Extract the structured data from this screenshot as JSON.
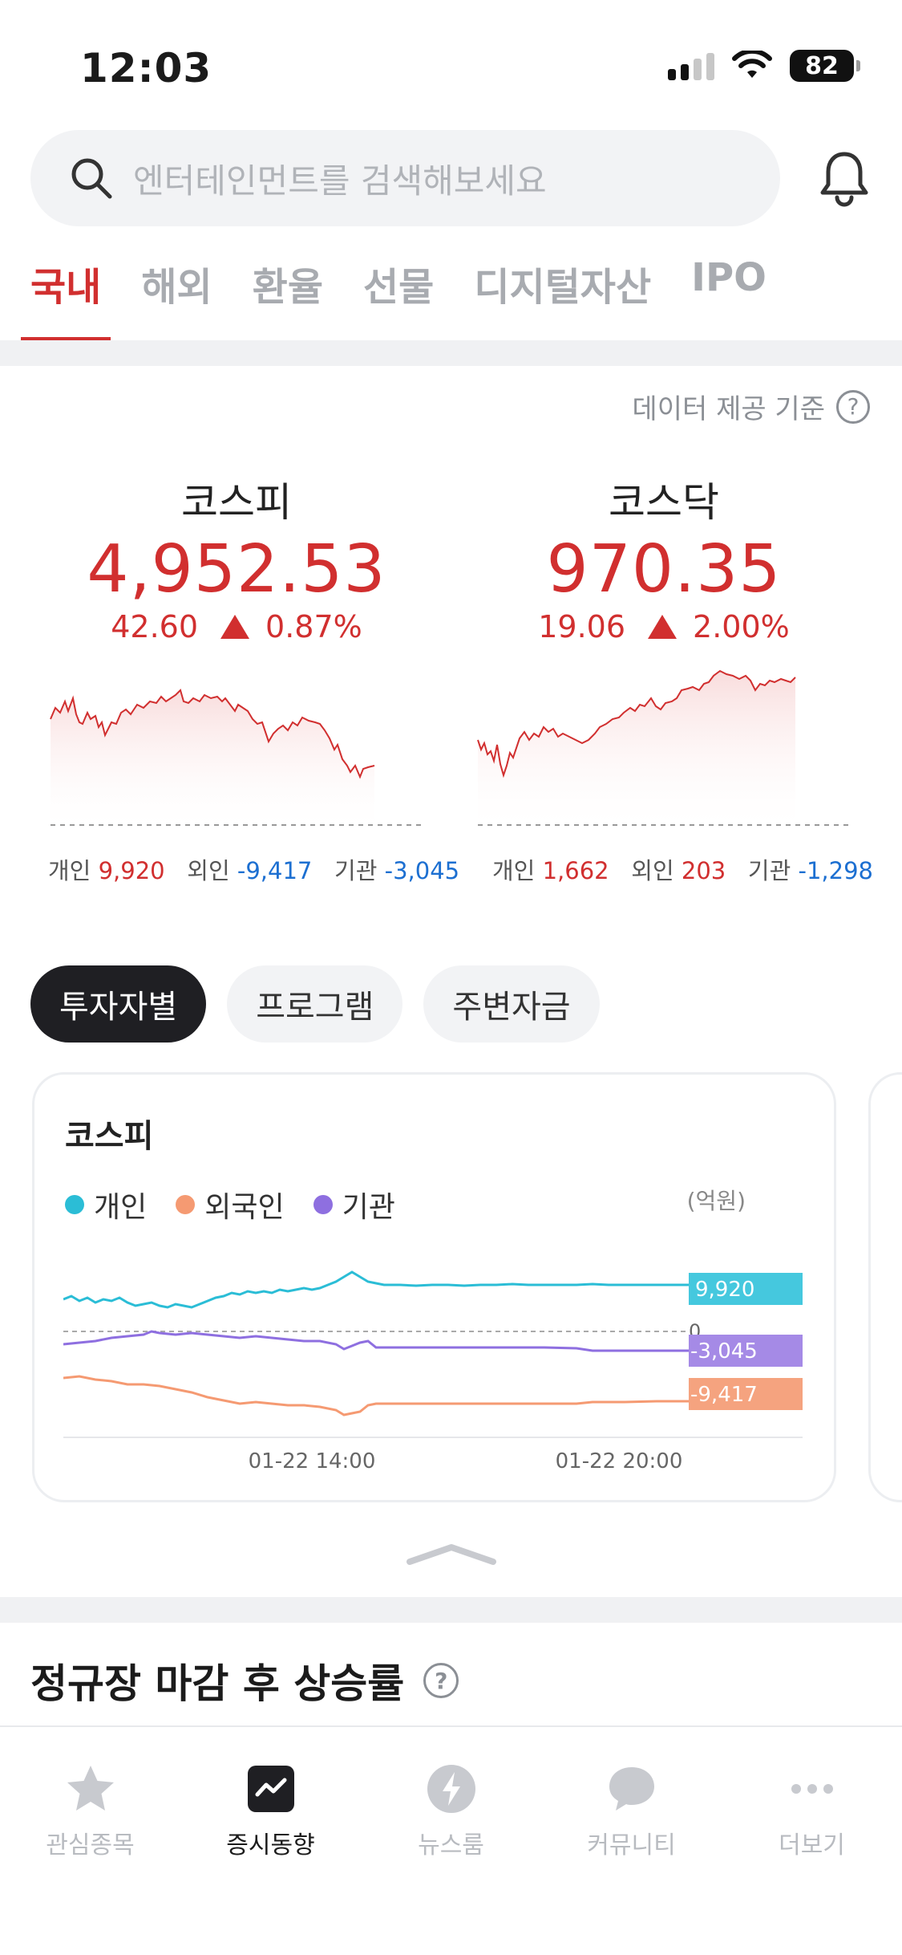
{
  "status_bar": {
    "time": "12:03",
    "battery": "82"
  },
  "search": {
    "placeholder": "엔터테인먼트를 검색해보세요"
  },
  "tabs": [
    {
      "label": "국내",
      "active": true
    },
    {
      "label": "해외"
    },
    {
      "label": "환율"
    },
    {
      "label": "선물"
    },
    {
      "label": "디지털자산"
    },
    {
      "label": "IPO"
    }
  ],
  "data_basis": "데이터 제공 기준",
  "indices": [
    {
      "name": "코스피",
      "value": "4,952.53",
      "change": "42.60",
      "change_pct": "0.87%",
      "flows": {
        "individual_label": "개인",
        "individual": "9,920",
        "foreign_label": "외인",
        "foreign": "-9,417",
        "institution_label": "기관",
        "institution": "-3,045"
      }
    },
    {
      "name": "코스닥",
      "value": "970.35",
      "change": "19.06",
      "change_pct": "2.00%",
      "flows": {
        "individual_label": "개인",
        "individual": "1,662",
        "foreign_label": "외인",
        "foreign": "203",
        "institution_label": "기관",
        "institution": "-1,298"
      }
    }
  ],
  "pills": [
    "투자자별",
    "프로그램",
    "주변자금"
  ],
  "card": {
    "title": "코스피",
    "unit": "(억원)",
    "legend": [
      {
        "label": "개인",
        "color": "#2bbdd6"
      },
      {
        "label": "외국인",
        "color": "#f59a72"
      },
      {
        "label": "기관",
        "color": "#8e6fe0"
      }
    ],
    "zero_label": "0",
    "end_labels": [
      "9,920",
      "-3,045",
      "-9,417"
    ],
    "x_ticks": [
      "01-22 14:00",
      "01-22 20:00"
    ]
  },
  "section": {
    "title": "정규장 마감 후 상승률"
  },
  "bottom_nav": [
    {
      "label": "관심종목",
      "icon": "star-icon"
    },
    {
      "label": "증시동향",
      "icon": "market-trend-icon",
      "active": true
    },
    {
      "label": "뉴스룸",
      "icon": "lightning-icon"
    },
    {
      "label": "커뮤니티",
      "icon": "chat-bubble-icon"
    },
    {
      "label": "더보기",
      "icon": "more-dots-icon"
    }
  ],
  "colors": {
    "up": "#d12f2f",
    "down": "#1c6fd1",
    "accent": "#d12f2f"
  }
}
